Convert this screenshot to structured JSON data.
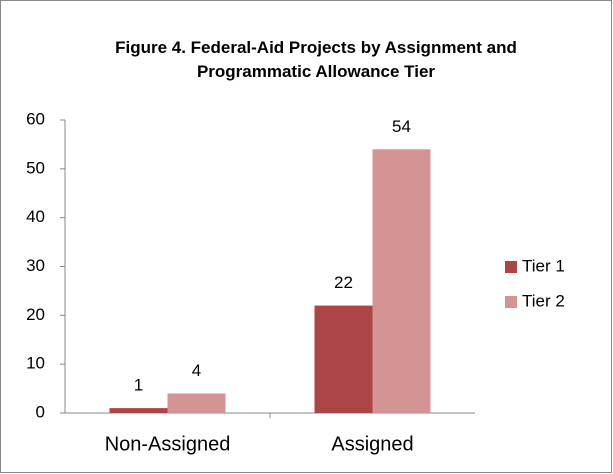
{
  "chart_data": {
    "type": "bar",
    "title": "Figure 4. Federal-Aid Projects by Assignment and Programmatic Allowance Tier",
    "categories": [
      "Non-Assigned",
      "Assigned"
    ],
    "series": [
      {
        "name": "Tier 1",
        "color": "#ac4545",
        "values": [
          1,
          22
        ]
      },
      {
        "name": "Tier 2",
        "color": "#d49494",
        "values": [
          4,
          54
        ]
      }
    ],
    "ylim": [
      0,
      60
    ],
    "yticks": [
      0,
      10,
      20,
      30,
      40,
      50,
      60
    ],
    "grid": false,
    "legend": "right"
  }
}
